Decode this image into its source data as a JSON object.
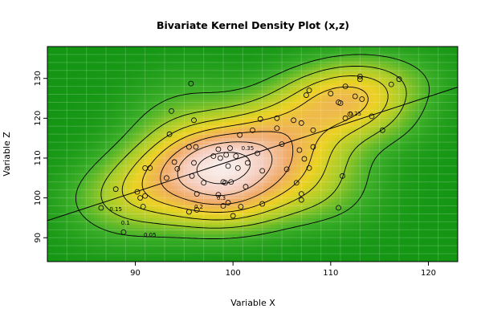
{
  "chart_data": {
    "type": "scatter",
    "subtype": "bivariate-kernel-density-contour",
    "title": "Bivariate Kernel Density Plot (x,z)",
    "xlabel": "Variable X",
    "ylabel": "Variable Z",
    "xlim": [
      81,
      123
    ],
    "ylim": [
      84,
      138
    ],
    "x_ticks": [
      90,
      100,
      110,
      120
    ],
    "y_ticks": [
      90,
      100,
      110,
      120,
      130
    ],
    "grid": true,
    "legend": "none",
    "colors": {
      "background_low": "#1f9f1f",
      "background_mid": "#e6c81e",
      "background_high": "#f5e6e0",
      "contour": "#000000",
      "points": "#000000",
      "regression_line": "#000000"
    },
    "regression_line": {
      "x": [
        81,
        123
      ],
      "y": [
        94.3,
        127.8
      ]
    },
    "contour_levels": [
      {
        "label": "0.05",
        "x": 91.5,
        "y": 90.8
      },
      {
        "label": "0.1",
        "x": 89.0,
        "y": 93.8
      },
      {
        "label": "0.15",
        "x": 88.0,
        "y": 97.2
      },
      {
        "label": "0.2",
        "x": 96.5,
        "y": 97.8
      },
      {
        "label": "0.25",
        "x": 112.5,
        "y": 121.2
      },
      {
        "label": "0.3",
        "x": 98.8,
        "y": 100.0
      },
      {
        "label": "0.35",
        "x": 101.5,
        "y": 112.5
      }
    ],
    "points": [
      [
        86.5,
        97.5
      ],
      [
        88.0,
        102.2
      ],
      [
        88.8,
        91.4
      ],
      [
        90.2,
        101.5
      ],
      [
        90.5,
        100.0
      ],
      [
        90.8,
        97.8
      ],
      [
        91.0,
        107.5
      ],
      [
        91.0,
        100.5
      ],
      [
        91.5,
        107.5
      ],
      [
        93.2,
        105.0
      ],
      [
        93.5,
        116.0
      ],
      [
        93.7,
        121.8
      ],
      [
        94.0,
        109.0
      ],
      [
        94.3,
        107.3
      ],
      [
        95.5,
        112.8
      ],
      [
        95.5,
        96.5
      ],
      [
        95.7,
        128.7
      ],
      [
        95.8,
        105.5
      ],
      [
        96.0,
        119.5
      ],
      [
        96.0,
        108.8
      ],
      [
        96.2,
        112.8
      ],
      [
        96.3,
        101.0
      ],
      [
        96.3,
        97.0
      ],
      [
        97.0,
        103.8
      ],
      [
        98.0,
        110.5
      ],
      [
        98.5,
        112.2
      ],
      [
        98.5,
        100.8
      ],
      [
        98.7,
        110.0
      ],
      [
        99.0,
        104.0
      ],
      [
        99.0,
        98.0
      ],
      [
        99.2,
        103.8
      ],
      [
        99.3,
        110.8
      ],
      [
        99.5,
        108.0
      ],
      [
        99.7,
        112.5
      ],
      [
        99.8,
        104.0
      ],
      [
        99.5,
        98.8
      ],
      [
        100.0,
        95.5
      ],
      [
        100.3,
        110.5
      ],
      [
        100.5,
        107.5
      ],
      [
        100.7,
        115.8
      ],
      [
        100.8,
        97.8
      ],
      [
        101.3,
        102.8
      ],
      [
        101.5,
        108.8
      ],
      [
        102.0,
        117.0
      ],
      [
        102.5,
        111.2
      ],
      [
        102.8,
        119.8
      ],
      [
        103.0,
        106.8
      ],
      [
        103.0,
        98.5
      ],
      [
        104.5,
        120.0
      ],
      [
        104.5,
        117.5
      ],
      [
        105.0,
        113.5
      ],
      [
        105.5,
        107.2
      ],
      [
        106.2,
        119.5
      ],
      [
        106.5,
        103.8
      ],
      [
        106.8,
        112.0
      ],
      [
        107.0,
        101.0
      ],
      [
        107.0,
        99.5
      ],
      [
        107.0,
        118.8
      ],
      [
        107.3,
        109.8
      ],
      [
        107.5,
        125.8
      ],
      [
        107.8,
        107.5
      ],
      [
        107.8,
        127.0
      ],
      [
        108.2,
        112.8
      ],
      [
        108.2,
        117.0
      ],
      [
        110.0,
        126.2
      ],
      [
        110.8,
        124.0
      ],
      [
        111.0,
        123.8
      ],
      [
        110.8,
        97.5
      ],
      [
        111.2,
        105.5
      ],
      [
        111.5,
        120.0
      ],
      [
        111.5,
        128.0
      ],
      [
        112.0,
        121.0
      ],
      [
        112.5,
        125.5
      ],
      [
        113.0,
        130.5
      ],
      [
        113.0,
        129.8
      ],
      [
        113.2,
        124.8
      ],
      [
        114.2,
        120.5
      ],
      [
        115.3,
        117.0
      ],
      [
        116.2,
        128.5
      ],
      [
        117.0,
        129.8
      ]
    ]
  }
}
